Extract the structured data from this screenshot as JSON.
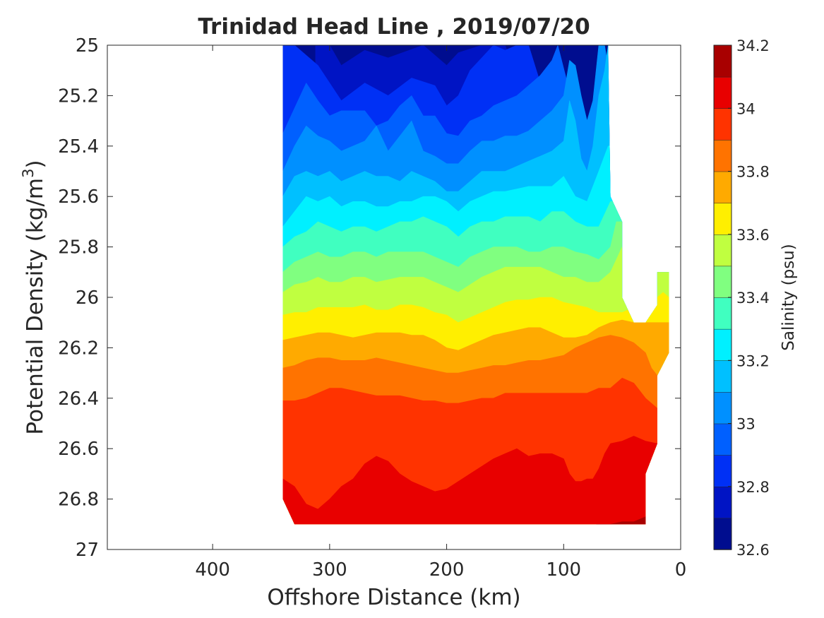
{
  "chart_data": {
    "type": "contour",
    "title": "Trinidad Head Line , 2019/07/20",
    "xlabel": "Offshore Distance (km)",
    "ylabel_main": "Potential Density (kg/m",
    "ylabel_sup": "3",
    "ylabel_close": ")",
    "x_range": [
      490,
      0
    ],
    "x_ticks": [
      400,
      300,
      200,
      100,
      0
    ],
    "y_range": [
      25,
      27
    ],
    "y_reversed": true,
    "y_ticks": [
      25,
      25.2,
      25.4,
      25.6,
      25.8,
      26,
      26.2,
      26.4,
      26.6,
      26.8,
      27
    ],
    "grid": false,
    "colorbar": {
      "label": "Salinity (psu)",
      "range": [
        32.6,
        34.2
      ],
      "tick_values": [
        32.6,
        32.8,
        33,
        33.2,
        33.4,
        33.6,
        33.8,
        34,
        34.2
      ],
      "tick_labels": [
        "32.6",
        "32.8",
        "33",
        "33.2",
        "33.4",
        "33.6",
        "33.8",
        "34",
        "34.2"
      ],
      "levels": [
        32.6,
        32.7,
        32.8,
        32.9,
        33.0,
        33.1,
        33.2,
        33.3,
        33.4,
        33.5,
        33.6,
        33.7,
        33.8,
        33.9,
        34.0,
        34.1,
        34.2
      ],
      "colors": [
        "#000d8f",
        "#0014c4",
        "#0030f5",
        "#0060ff",
        "#0090ff",
        "#00c0ff",
        "#00f0ff",
        "#40ffc0",
        "#80ff80",
        "#c0ff40",
        "#ffef00",
        "#ffaa00",
        "#ff7300",
        "#ff3300",
        "#e80000",
        "#a80000"
      ]
    },
    "data_extent": {
      "x_start_km": 340,
      "x_ticks_km": [
        340,
        330,
        310,
        300,
        290,
        280,
        270,
        260,
        250,
        240,
        230,
        220,
        210,
        200,
        190,
        180,
        170,
        160,
        150,
        140,
        130,
        120,
        110,
        100,
        90,
        80,
        70,
        60,
        50,
        40,
        30,
        20,
        10
      ],
      "boundary_x_km": [
        340,
        340,
        62,
        60,
        50,
        50,
        40,
        30,
        20,
        20,
        10,
        10,
        20,
        20,
        30,
        30,
        330
      ],
      "boundary_density": [
        26.8,
        25.0,
        25.0,
        25.6,
        25.7,
        26.0,
        26.1,
        26.1,
        26.03,
        25.9,
        25.9,
        26.22,
        26.31,
        26.58,
        26.7,
        26.9,
        26.9
      ]
    },
    "isolines": [
      {
        "level": 32.7,
        "x": [
          300,
          290,
          270,
          250,
          220,
          200,
          190,
          170,
          150
        ],
        "y": [
          25.0,
          25.08,
          25.02,
          25.05,
          25.0,
          25.08,
          25.03,
          25.0,
          25.0
        ]
      },
      {
        "level": 32.8,
        "x": [
          330,
          310,
          290,
          270,
          250,
          230,
          210,
          200,
          190,
          180,
          170,
          160,
          150,
          140,
          130
        ],
        "y": [
          25.0,
          25.08,
          25.22,
          25.15,
          25.2,
          25.13,
          25.16,
          25.24,
          25.2,
          25.1,
          25.05,
          25.0,
          25.02,
          25.0,
          25.0
        ]
      },
      {
        "level": 32.9,
        "x": [
          340,
          330,
          320,
          310,
          300,
          290,
          280,
          270,
          260,
          250,
          240,
          230,
          220,
          210,
          200,
          190,
          180,
          170,
          160,
          150,
          140,
          130,
          120,
          110,
          105
        ],
        "y": [
          25.35,
          25.25,
          25.15,
          25.22,
          25.28,
          25.26,
          25.26,
          25.26,
          25.32,
          25.3,
          25.24,
          25.2,
          25.28,
          25.28,
          25.35,
          25.36,
          25.3,
          25.28,
          25.24,
          25.22,
          25.2,
          25.16,
          25.12,
          25.06,
          25.0
        ]
      },
      {
        "level": 33.0,
        "x": [
          340,
          330,
          320,
          310,
          300,
          290,
          280,
          270,
          260,
          250,
          240,
          230,
          220,
          210,
          200,
          190,
          180,
          170,
          160,
          150,
          140,
          130,
          120,
          110,
          100,
          95,
          90,
          85,
          80,
          75,
          70,
          65
        ],
        "y": [
          25.5,
          25.4,
          25.32,
          25.36,
          25.38,
          25.42,
          25.4,
          25.38,
          25.32,
          25.42,
          25.36,
          25.3,
          25.42,
          25.44,
          25.47,
          25.47,
          25.42,
          25.38,
          25.38,
          25.36,
          25.36,
          25.34,
          25.3,
          25.26,
          25.2,
          25.06,
          25.08,
          25.2,
          25.3,
          25.22,
          25.0,
          25.0
        ]
      },
      {
        "level": 33.1,
        "x": [
          340,
          330,
          320,
          310,
          300,
          290,
          280,
          270,
          260,
          250,
          240,
          230,
          220,
          210,
          200,
          190,
          180,
          170,
          160,
          150,
          140,
          130,
          120,
          110,
          100,
          95,
          90,
          85,
          80,
          75,
          70,
          65,
          62
        ],
        "y": [
          25.6,
          25.52,
          25.5,
          25.52,
          25.5,
          25.54,
          25.52,
          25.5,
          25.52,
          25.52,
          25.54,
          25.5,
          25.52,
          25.54,
          25.58,
          25.58,
          25.54,
          25.5,
          25.5,
          25.5,
          25.48,
          25.46,
          25.44,
          25.42,
          25.38,
          25.22,
          25.3,
          25.45,
          25.5,
          25.4,
          25.2,
          25.1,
          25.0
        ]
      },
      {
        "level": 33.2,
        "x": [
          340,
          330,
          320,
          310,
          300,
          290,
          280,
          270,
          260,
          250,
          240,
          230,
          220,
          210,
          200,
          190,
          180,
          170,
          160,
          150,
          140,
          130,
          120,
          110,
          100,
          90,
          80,
          70,
          62
        ],
        "y": [
          25.72,
          25.66,
          25.6,
          25.62,
          25.6,
          25.64,
          25.62,
          25.62,
          25.64,
          25.64,
          25.62,
          25.62,
          25.6,
          25.6,
          25.62,
          25.66,
          25.62,
          25.6,
          25.58,
          25.58,
          25.57,
          25.56,
          25.56,
          25.56,
          25.52,
          25.6,
          25.62,
          25.5,
          25.4
        ]
      },
      {
        "level": 33.3,
        "x": [
          340,
          330,
          320,
          310,
          300,
          290,
          280,
          270,
          260,
          250,
          240,
          230,
          220,
          210,
          200,
          190,
          180,
          170,
          160,
          150,
          140,
          130,
          120,
          110,
          100,
          90,
          80,
          70,
          60
        ],
        "y": [
          25.8,
          25.76,
          25.74,
          25.7,
          25.72,
          25.74,
          25.72,
          25.72,
          25.74,
          25.72,
          25.7,
          25.7,
          25.68,
          25.7,
          25.72,
          25.76,
          25.72,
          25.7,
          25.7,
          25.68,
          25.68,
          25.68,
          25.7,
          25.66,
          25.66,
          25.7,
          25.72,
          25.72,
          25.62
        ]
      },
      {
        "level": 33.4,
        "x": [
          340,
          330,
          320,
          310,
          300,
          290,
          280,
          270,
          260,
          250,
          240,
          230,
          220,
          210,
          200,
          190,
          180,
          170,
          160,
          150,
          140,
          130,
          120,
          110,
          100,
          90,
          80,
          70,
          60,
          55
        ],
        "y": [
          25.9,
          25.86,
          25.84,
          25.82,
          25.84,
          25.84,
          25.82,
          25.82,
          25.84,
          25.82,
          25.82,
          25.82,
          25.82,
          25.84,
          25.86,
          25.88,
          25.84,
          25.82,
          25.8,
          25.8,
          25.8,
          25.82,
          25.82,
          25.8,
          25.8,
          25.82,
          25.83,
          25.85,
          25.8,
          25.7
        ]
      },
      {
        "level": 33.5,
        "x": [
          340,
          330,
          320,
          310,
          300,
          290,
          280,
          270,
          260,
          250,
          240,
          230,
          220,
          210,
          200,
          190,
          180,
          170,
          160,
          150,
          140,
          130,
          120,
          110,
          100,
          90,
          80,
          70,
          60,
          55,
          50
        ],
        "y": [
          25.98,
          25.95,
          25.94,
          25.92,
          25.94,
          25.94,
          25.92,
          25.92,
          25.94,
          25.93,
          25.92,
          25.92,
          25.92,
          25.94,
          25.96,
          25.98,
          25.95,
          25.92,
          25.9,
          25.88,
          25.88,
          25.88,
          25.88,
          25.9,
          25.92,
          25.92,
          25.94,
          25.94,
          25.9,
          25.85,
          25.8
        ]
      },
      {
        "level": 33.6,
        "x": [
          340,
          330,
          320,
          310,
          300,
          290,
          280,
          270,
          260,
          250,
          240,
          230,
          220,
          210,
          200,
          190,
          180,
          170,
          160,
          150,
          140,
          130,
          120,
          110,
          100,
          90,
          80,
          70,
          60,
          50,
          45
        ],
        "y": [
          26.07,
          26.06,
          26.06,
          26.04,
          26.04,
          26.04,
          26.04,
          26.03,
          26.05,
          26.05,
          26.03,
          26.03,
          26.04,
          26.06,
          26.07,
          26.1,
          26.08,
          26.06,
          26.04,
          26.02,
          26.01,
          26.01,
          26.0,
          26.0,
          26.02,
          26.03,
          26.04,
          26.06,
          26.06,
          26.06,
          26.05
        ]
      },
      {
        "level": 33.6,
        "x": [
          20,
          15,
          10,
          10,
          15
        ],
        "y": [
          26.0,
          25.98,
          26.0,
          26.2,
          26.18
        ]
      },
      {
        "level": 33.7,
        "x": [
          340,
          330,
          320,
          310,
          300,
          290,
          280,
          270,
          260,
          250,
          240,
          230,
          220,
          210,
          200,
          190,
          180,
          170,
          160,
          150,
          140,
          130,
          120,
          110,
          100,
          90,
          80,
          70,
          60,
          50,
          40
        ],
        "y": [
          26.17,
          26.16,
          26.15,
          26.14,
          26.14,
          26.15,
          26.16,
          26.15,
          26.14,
          26.14,
          26.14,
          26.15,
          26.15,
          26.17,
          26.2,
          26.21,
          26.19,
          26.17,
          26.15,
          26.14,
          26.13,
          26.12,
          26.12,
          26.14,
          26.16,
          26.16,
          26.15,
          26.12,
          26.1,
          26.09,
          26.1
        ]
      },
      {
        "level": 33.8,
        "x": [
          340,
          330,
          320,
          310,
          300,
          290,
          280,
          270,
          260,
          250,
          240,
          230,
          220,
          210,
          200,
          190,
          180,
          170,
          160,
          150,
          140,
          130,
          120,
          110,
          100,
          90,
          80,
          70,
          60,
          50,
          40,
          30,
          25,
          20
        ],
        "y": [
          26.28,
          26.27,
          26.25,
          26.24,
          26.24,
          26.25,
          26.25,
          26.25,
          26.24,
          26.25,
          26.26,
          26.27,
          26.28,
          26.29,
          26.3,
          26.3,
          26.29,
          26.28,
          26.27,
          26.27,
          26.26,
          26.25,
          26.25,
          26.24,
          26.23,
          26.2,
          26.18,
          26.16,
          26.15,
          26.16,
          26.18,
          26.22,
          26.28,
          26.31
        ]
      },
      {
        "level": 33.9,
        "x": [
          340,
          330,
          320,
          310,
          300,
          290,
          280,
          270,
          260,
          250,
          240,
          230,
          220,
          210,
          200,
          190,
          180,
          170,
          160,
          150,
          140,
          130,
          120,
          110,
          100,
          90,
          80,
          70,
          60,
          50,
          40,
          30,
          20
        ],
        "y": [
          26.41,
          26.41,
          26.4,
          26.38,
          26.36,
          26.36,
          26.37,
          26.38,
          26.39,
          26.39,
          26.39,
          26.4,
          26.41,
          26.41,
          26.42,
          26.42,
          26.41,
          26.4,
          26.4,
          26.38,
          26.38,
          26.38,
          26.38,
          26.38,
          26.38,
          26.38,
          26.38,
          26.36,
          26.36,
          26.32,
          26.34,
          26.4,
          26.44
        ]
      },
      {
        "level": 34.0,
        "x": [
          340,
          330,
          320,
          310,
          300,
          290,
          280,
          270,
          260,
          250,
          240,
          230,
          220,
          210,
          200,
          190,
          180,
          170,
          160,
          150,
          140,
          130,
          120,
          110,
          100,
          95,
          90,
          85,
          80,
          75,
          70,
          65,
          60,
          50,
          40,
          30,
          20
        ],
        "y": [
          26.72,
          26.75,
          26.82,
          26.84,
          26.8,
          26.75,
          26.72,
          26.66,
          26.63,
          26.65,
          26.7,
          26.73,
          26.75,
          26.77,
          26.76,
          26.73,
          26.7,
          26.67,
          26.64,
          26.62,
          26.6,
          26.63,
          26.62,
          26.62,
          26.64,
          26.7,
          26.73,
          26.73,
          26.72,
          26.72,
          26.68,
          26.62,
          26.58,
          26.57,
          26.55,
          26.57,
          26.58
        ]
      },
      {
        "level": 34.1,
        "x": [
          60,
          50,
          40,
          30
        ],
        "y": [
          26.9,
          26.89,
          26.89,
          26.87
        ]
      }
    ]
  }
}
